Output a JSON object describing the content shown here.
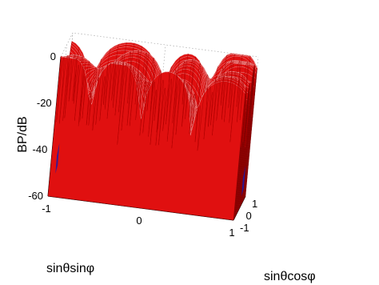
{
  "chart_data": {
    "type": "surface",
    "title": "",
    "xlabel": "sinθcosφ",
    "ylabel": "sinθsinφ",
    "zlabel": "BP/dB",
    "xlim": [
      -1,
      1
    ],
    "ylim": [
      -1,
      1
    ],
    "zlim": [
      -60,
      0
    ],
    "x_ticks": [
      "-1",
      "0",
      "1"
    ],
    "y_ticks": [
      "-1",
      "0",
      "1"
    ],
    "z_ticks": [
      "0",
      "-20",
      "-40",
      "-60"
    ],
    "grid": true,
    "colors": {
      "surface_top": "#e01010",
      "surface_underside": "#1a1aa8",
      "axes": "#000000"
    },
    "description_values": {
      "mainlobe_peak_db": 0,
      "typical_sidelobe_level_db": -18,
      "null_depth_db": -60
    }
  }
}
